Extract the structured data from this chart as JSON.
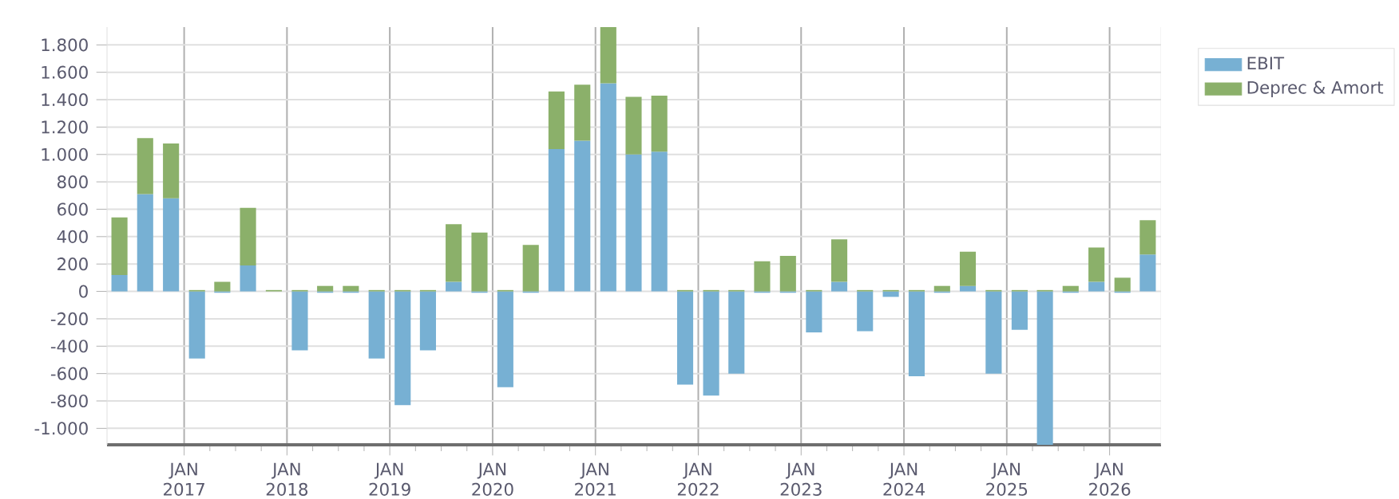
{
  "chart_data": {
    "type": "bar",
    "stacked": true,
    "x": [
      "2016-05-15",
      "2016-08-15",
      "2016-11-15",
      "2017-02-15",
      "2017-05-15",
      "2017-08-15",
      "2017-11-15",
      "2018-02-15",
      "2018-05-15",
      "2018-08-15",
      "2018-11-15",
      "2019-02-15",
      "2019-05-15",
      "2019-08-15",
      "2019-11-15",
      "2020-02-15",
      "2020-05-15",
      "2020-08-15",
      "2020-11-15",
      "2021-02-15",
      "2021-05-15",
      "2021-08-15",
      "2021-11-15",
      "2022-02-15",
      "2022-05-15",
      "2022-08-15",
      "2022-11-15",
      "2023-02-15",
      "2023-05-15",
      "2023-08-15",
      "2023-11-15",
      "2024-02-15",
      "2024-05-15",
      "2024-08-15",
      "2024-11-15",
      "2025-02-15",
      "2025-05-15",
      "2025-08-15",
      "2025-11-15",
      "2026-02-15",
      "2026-05-15"
    ],
    "series": [
      {
        "name": "EBIT",
        "color": "#77b0d3",
        "values": [
          120,
          710,
          680,
          -490,
          -10,
          190,
          0,
          -430,
          -10,
          -10,
          -490,
          -830,
          -430,
          70,
          -10,
          -700,
          -10,
          1040,
          1100,
          1520,
          1000,
          1020,
          -680,
          -760,
          -600,
          -10,
          -10,
          -300,
          70,
          -290,
          -40,
          -620,
          -10,
          40,
          -600,
          -280,
          -1120,
          -10,
          70,
          -10,
          270
        ]
      },
      {
        "name": "Deprec & Amort",
        "color": "#8bb06a",
        "values": [
          420,
          410,
          400,
          10,
          70,
          420,
          10,
          10,
          40,
          40,
          10,
          10,
          10,
          420,
          430,
          10,
          340,
          420,
          410,
          410,
          420,
          410,
          10,
          10,
          10,
          220,
          260,
          10,
          310,
          10,
          10,
          10,
          40,
          250,
          10,
          10,
          10,
          40,
          250,
          100,
          250
        ]
      }
    ],
    "xlim": [
      "2016-04",
      "2026-07"
    ],
    "xticks": [
      {
        "value": "2017-01",
        "label": "JAN 2017"
      },
      {
        "value": "2018-01",
        "label": "JAN 2018"
      },
      {
        "value": "2019-01",
        "label": "JAN 2019"
      },
      {
        "value": "2020-01",
        "label": "JAN 2020"
      },
      {
        "value": "2021-01",
        "label": "JAN 2021"
      },
      {
        "value": "2022-01",
        "label": "JAN 2022"
      },
      {
        "value": "2023-01",
        "label": "JAN 2023"
      },
      {
        "value": "2024-01",
        "label": "JAN 2024"
      },
      {
        "value": "2025-01",
        "label": "JAN 2025"
      },
      {
        "value": "2026-01",
        "label": "JAN 2026"
      }
    ],
    "ylim": [
      -1120,
      1930
    ],
    "yticks": [
      {
        "value": -1000,
        "label": "-1.000"
      },
      {
        "value": -800,
        "label": "-800"
      },
      {
        "value": -600,
        "label": "-600"
      },
      {
        "value": -400,
        "label": "-400"
      },
      {
        "value": -200,
        "label": "-200"
      },
      {
        "value": 0,
        "label": "0"
      },
      {
        "value": 200,
        "label": "200"
      },
      {
        "value": 400,
        "label": "400"
      },
      {
        "value": 600,
        "label": "600"
      },
      {
        "value": 800,
        "label": "800"
      },
      {
        "value": 1000,
        "label": "1.000"
      },
      {
        "value": 1200,
        "label": "1.200"
      },
      {
        "value": 1400,
        "label": "1.400"
      },
      {
        "value": 1600,
        "label": "1.600"
      },
      {
        "value": 1800,
        "label": "1.800"
      }
    ],
    "grid": true,
    "legend": "top right"
  }
}
